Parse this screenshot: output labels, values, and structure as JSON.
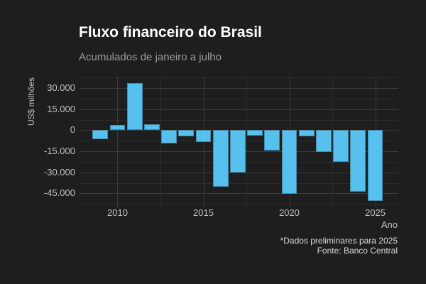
{
  "header": {
    "title": "Fluxo financeiro do Brasil",
    "subtitle": "Acumulados de janeiro a julho"
  },
  "footer": {
    "note": "*Dados preliminares para 2025",
    "source": "Fonte: Banco Central"
  },
  "colors": {
    "background": "#1e1e1e",
    "bar": "#56c1ec",
    "grid_major": "#3b3b3b",
    "grid_minor": "#2c2c2c",
    "title_text": "#ffffff",
    "subtitle_text": "#9c9c9c",
    "axis_text": "#c1c1c1",
    "caption_text": "#d9d9d9"
  },
  "chart_data": {
    "type": "bar",
    "title": "Fluxo financeiro do Brasil",
    "subtitle": "Acumulados de janeiro a julho",
    "xlabel": "Ano",
    "ylabel": "US$ milhões",
    "unit": "US$ milhões",
    "legend": "none",
    "grid": "major+minor",
    "categories": [
      2009,
      2010,
      2011,
      2012,
      2013,
      2014,
      2015,
      2016,
      2017,
      2018,
      2019,
      2020,
      2021,
      2022,
      2023,
      2024,
      2025
    ],
    "values": [
      -6500,
      3700,
      33700,
      4400,
      -9400,
      -4500,
      -8500,
      -40000,
      -30300,
      -3800,
      -14700,
      -45500,
      -4600,
      -15600,
      -22800,
      -43900,
      -50200
    ],
    "xlim": [
      2007.79,
      2026.34
    ],
    "ylim": [
      -54400,
      38100
    ],
    "bar_rel_width": 0.9,
    "y_major_ticks": [
      {
        "value": 30000,
        "label": "30.000"
      },
      {
        "value": 15000,
        "label": "15.000"
      },
      {
        "value": 0,
        "label": "0"
      },
      {
        "value": -15000,
        "label": "-15.000"
      },
      {
        "value": -30000,
        "label": "-30.000"
      },
      {
        "value": -45000,
        "label": "-45.000"
      }
    ],
    "y_minor_ticks": [
      37500,
      22500,
      7500,
      -7500,
      -22500,
      -37500,
      -52500
    ],
    "x_major_ticks": [
      {
        "value": 2010,
        "label": "2010"
      },
      {
        "value": 2015,
        "label": "2015"
      },
      {
        "value": 2020,
        "label": "2020"
      },
      {
        "value": 2025,
        "label": "2025"
      }
    ],
    "x_minor_ticks": [
      2012.5,
      2017.5,
      2022.5
    ]
  }
}
